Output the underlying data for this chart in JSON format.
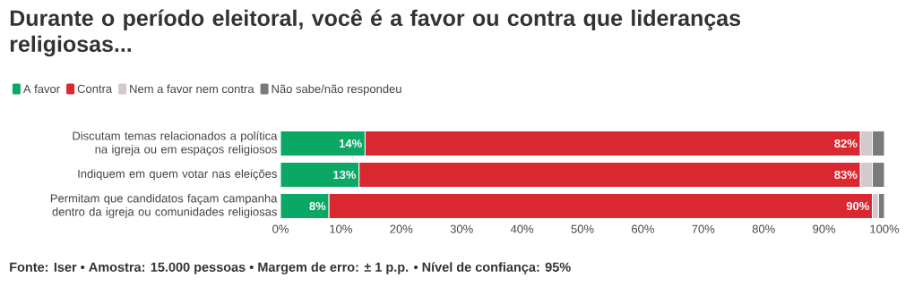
{
  "chart_data": {
    "type": "bar",
    "orientation": "horizontal",
    "stacked": true,
    "title": "Durante o período eleitoral, você é a favor ou contra que lideranças religiosas...",
    "categories": [
      "Discutam temas relacionados a política na igreja ou em espaços religiosos",
      "Indiquem em quem votar nas eleições",
      "Permitam que candidatos façam campanha dentro da igreja ou comunidades religiosas"
    ],
    "series": [
      {
        "name": "A favor",
        "color": "#0aa864",
        "values": [
          14,
          13,
          8
        ],
        "value_labels": [
          "14%",
          "13%",
          "8%"
        ]
      },
      {
        "name": "Contra",
        "color": "#d9282f",
        "values": [
          82,
          83,
          90
        ],
        "value_labels": [
          "82%",
          "83%",
          "90%"
        ]
      },
      {
        "name": "Nem a favor nem contra",
        "color": "#d3c8cc",
        "values": [
          2,
          2,
          1
        ]
      },
      {
        "name": "Não sabe/não respondeu",
        "color": "#7a7a7a",
        "values": [
          2,
          2,
          1
        ]
      }
    ],
    "xlim": [
      0,
      100
    ],
    "xticks": [
      {
        "value": 0,
        "label": "0%"
      },
      {
        "value": 10,
        "label": "10%"
      },
      {
        "value": 20,
        "label": "20%"
      },
      {
        "value": 30,
        "label": "30%"
      },
      {
        "value": 40,
        "label": "40%"
      },
      {
        "value": 50,
        "label": "50%"
      },
      {
        "value": 60,
        "label": "60%"
      },
      {
        "value": 70,
        "label": "70%"
      },
      {
        "value": 80,
        "label": "80%"
      },
      {
        "value": 90,
        "label": "90%"
      },
      {
        "value": 100,
        "label": "100%"
      }
    ],
    "legend": "top left",
    "annotations": [
      "Fonte: Iser • Amostra: 15.000 pessoas • Margem de erro: ± 1 p.p. • Nível de confiança: 95%"
    ]
  }
}
